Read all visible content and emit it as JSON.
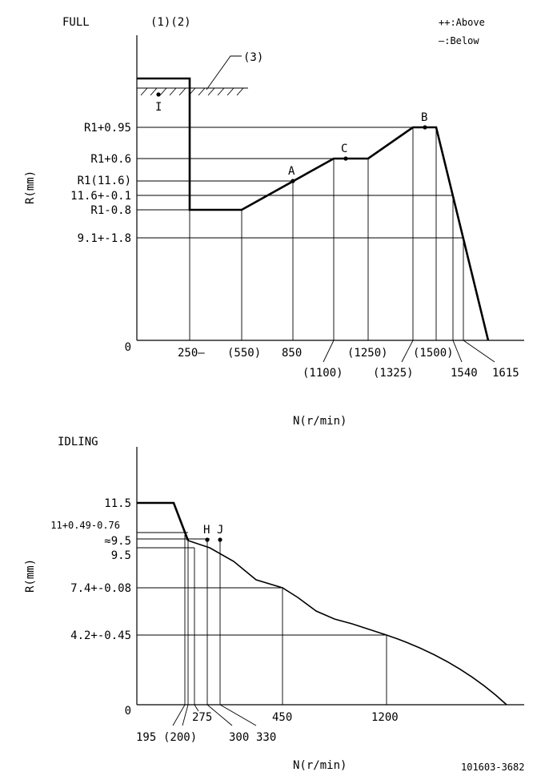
{
  "full": {
    "title": "FULL",
    "note_12": "(1)(2)",
    "note_3": "(3)",
    "legend_above": "++:Above",
    "legend_below": "—:Below",
    "ylabel": "R(mm)",
    "xlabel": "N(r/min)",
    "point_I": "I",
    "point_A": "A",
    "point_B": "B",
    "point_C": "C",
    "y_labels": [
      "R1+0.95",
      "R1+0.6",
      "R1(11.6)",
      "11.6+-0.1",
      "R1-0.8",
      "9.1+-1.8"
    ],
    "zero": "0",
    "x_labels": {
      "n250": "250—",
      "n550": "(550)",
      "n850": "850",
      "n1100": "(1100)",
      "n1250": "(1250)",
      "n1325": "(1325)",
      "n1500": "(1500)",
      "n1540": "1540",
      "n1615": "1615"
    }
  },
  "idling": {
    "title": "IDLING",
    "ylabel": "R(mm)",
    "xlabel": "N(r/min)",
    "point_H": "H",
    "point_J": "J",
    "y_labels": [
      "11.5",
      "11+0.49-0.76",
      "≈9.5",
      "9.5",
      "7.4+-0.08",
      "4.2+-0.45"
    ],
    "zero": "0",
    "x_labels": {
      "n195": "195",
      "n200": "(200)",
      "n275": "275",
      "n300": "300",
      "n330": "330",
      "n450": "450",
      "n1200": "1200"
    }
  },
  "doc_number": "101603-3682"
}
